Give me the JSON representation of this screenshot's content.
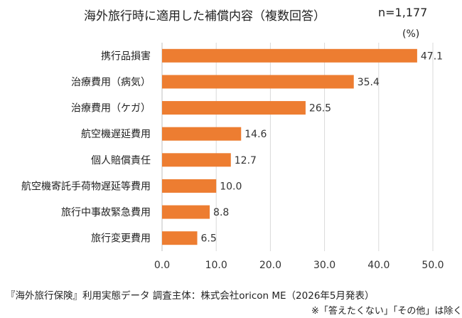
{
  "header": {
    "title": "海外旅行時に適用した補償内容（複数回答）",
    "n_label": "n=1,177",
    "unit_label": "(%)"
  },
  "footer": {
    "source": "『海外旅行保険』利用実態データ 調査主体：株式会社oricon ME（2026年5月発表）",
    "note": "※「答えたくない」「その他」は除く"
  },
  "colors": {
    "bar": "#ED7D31",
    "grid": "#D9D9D9",
    "axis": "#BFBFBF"
  },
  "chart_data": {
    "type": "bar",
    "orientation": "horizontal",
    "title": "海外旅行時に適用した補償内容（複数回答）",
    "categories": [
      "携行品損害",
      "治療費用（病気）",
      "治療費用（ケガ）",
      "航空機遅延費用",
      "個人賠償責任",
      "航空機寄託手荷物遅延等費用",
      "旅行中事故緊急費用",
      "旅行変更費用"
    ],
    "values": [
      47.1,
      35.4,
      26.5,
      14.6,
      12.7,
      10.0,
      8.8,
      6.5
    ],
    "value_labels": [
      "47.1",
      "35.4",
      "26.5",
      "14.6",
      "12.7",
      "10.0",
      "8.8",
      "6.5"
    ],
    "xlim": [
      0,
      50
    ],
    "x_ticks": [
      "0.0",
      "10.0",
      "20.0",
      "30.0",
      "40.0",
      "50.0"
    ],
    "grid": true,
    "legend": false
  }
}
